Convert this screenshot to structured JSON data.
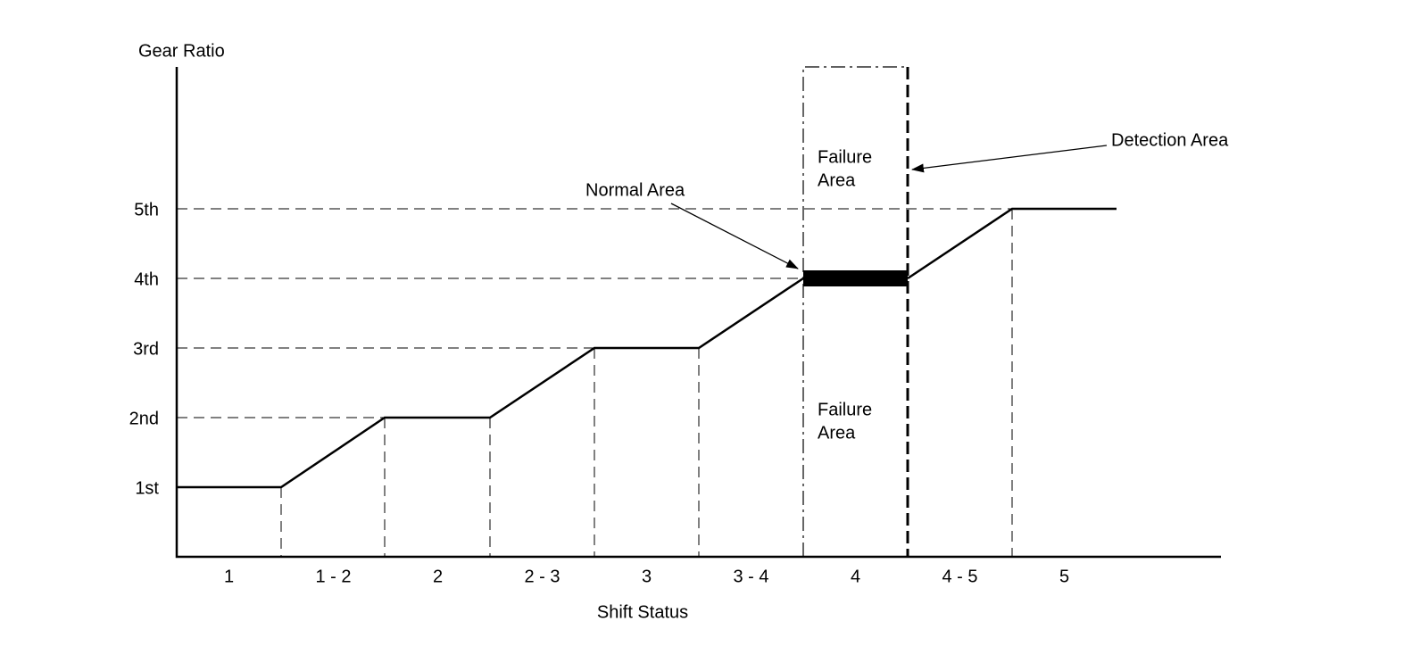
{
  "y_axis": {
    "title": "Gear Ratio",
    "labels": [
      "1st",
      "2nd",
      "3rd",
      "4th",
      "5th"
    ]
  },
  "x_axis": {
    "title": "Shift Status",
    "labels": [
      "1",
      "1 - 2",
      "2",
      "2 - 3",
      "3",
      "3 - 4",
      "4",
      "4 - 5",
      "5"
    ]
  },
  "annotations": {
    "failure_upper": [
      "Failure",
      "Area"
    ],
    "failure_lower": [
      "Failure",
      "Area"
    ],
    "normal": "Normal Area",
    "detection": "Detection Area"
  }
}
